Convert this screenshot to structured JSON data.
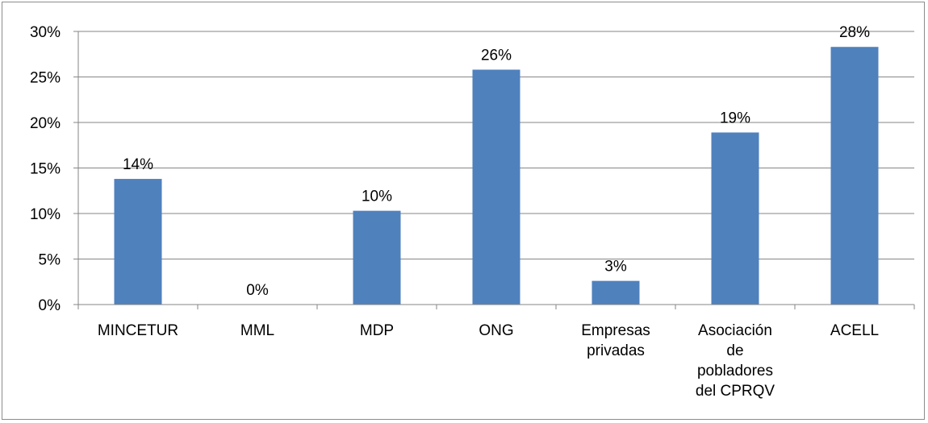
{
  "chart_data": {
    "type": "bar",
    "categories": [
      [
        "MINCETUR"
      ],
      [
        "MML"
      ],
      [
        "MDP"
      ],
      [
        "ONG"
      ],
      [
        "Empresas",
        "privadas"
      ],
      [
        "Asociación",
        "de",
        "pobladores",
        "del CPRQV"
      ],
      [
        "ACELL"
      ]
    ],
    "values": [
      13.8,
      0,
      10.3,
      25.8,
      2.6,
      18.9,
      28.3
    ],
    "data_labels": [
      "14%",
      "0%",
      "10%",
      "26%",
      "3%",
      "19%",
      "28%"
    ],
    "y_ticks": [
      "0%",
      "5%",
      "10%",
      "15%",
      "20%",
      "25%",
      "30%"
    ],
    "ylim": [
      0,
      30
    ],
    "grid": true,
    "bar_color": "#4f81bd",
    "grid_color": "#868686",
    "title": "",
    "xlabel": "",
    "ylabel": ""
  }
}
